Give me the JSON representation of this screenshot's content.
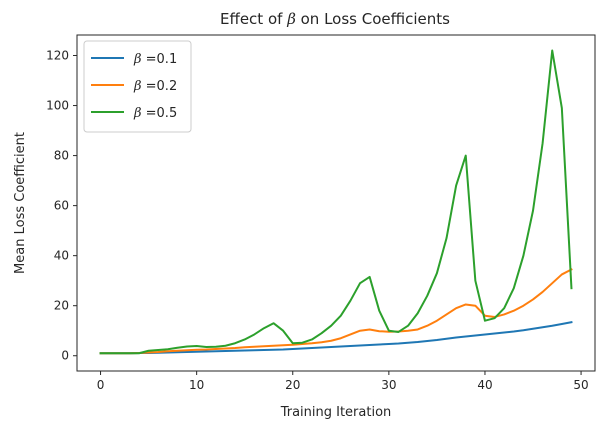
{
  "chart_data": {
    "type": "line",
    "title_prefix": "Effect of ",
    "title_symbol": "β",
    "title_suffix": " on Loss Coefficients",
    "xlabel": "Training Iteration",
    "ylabel": "Mean Loss Coefficient",
    "xlim": [
      -2.45,
      51.45
    ],
    "ylim": [
      -6.1,
      128.2
    ],
    "xticks": [
      0,
      10,
      20,
      30,
      40,
      50
    ],
    "yticks": [
      0,
      20,
      40,
      60,
      80,
      100,
      120
    ],
    "xtick_labels": [
      "0",
      "10",
      "20",
      "30",
      "40",
      "50"
    ],
    "ytick_labels": [
      "0",
      "20",
      "40",
      "60",
      "80",
      "100",
      "120"
    ],
    "grid": false,
    "legend_position": "upper-left",
    "x": [
      0,
      1,
      2,
      3,
      4,
      5,
      6,
      7,
      8,
      9,
      10,
      11,
      12,
      13,
      14,
      15,
      16,
      17,
      18,
      19,
      20,
      21,
      22,
      23,
      24,
      25,
      26,
      27,
      28,
      29,
      30,
      31,
      32,
      33,
      34,
      35,
      36,
      37,
      38,
      39,
      40,
      41,
      42,
      43,
      44,
      45,
      46,
      47,
      48,
      49
    ],
    "series": [
      {
        "name_symbol": "β",
        "name_value": " =0.1",
        "color": "#1f77b4",
        "values": [
          1.0,
          1.0,
          1.0,
          1.0,
          1.1,
          1.1,
          1.2,
          1.3,
          1.4,
          1.5,
          1.6,
          1.7,
          1.8,
          1.9,
          2.0,
          2.1,
          2.2,
          2.3,
          2.4,
          2.5,
          2.7,
          2.9,
          3.1,
          3.3,
          3.5,
          3.7,
          3.9,
          4.1,
          4.3,
          4.5,
          4.7,
          4.9,
          5.2,
          5.5,
          5.9,
          6.3,
          6.8,
          7.3,
          7.7,
          8.1,
          8.5,
          8.9,
          9.3,
          9.7,
          10.2,
          10.8,
          11.4,
          12.0,
          12.7,
          13.4
        ]
      },
      {
        "name_symbol": "β",
        "name_value": " =0.2",
        "color": "#ff7f0e",
        "values": [
          1.0,
          1.0,
          1.0,
          1.0,
          1.1,
          1.3,
          1.5,
          1.8,
          2.0,
          2.2,
          2.4,
          2.5,
          2.7,
          2.9,
          3.1,
          3.4,
          3.6,
          3.8,
          4.0,
          4.2,
          4.4,
          4.7,
          5.0,
          5.4,
          6.0,
          7.0,
          8.5,
          10.0,
          10.5,
          9.8,
          9.6,
          9.7,
          10.0,
          10.5,
          12.0,
          14.0,
          16.5,
          19.0,
          20.5,
          20.0,
          16.0,
          15.5,
          16.5,
          18.0,
          20.0,
          22.5,
          25.5,
          29.0,
          32.5,
          34.5
        ]
      },
      {
        "name_symbol": "β",
        "name_value": " =0.5",
        "color": "#2ca02c",
        "values": [
          1.0,
          1.0,
          1.0,
          1.0,
          1.0,
          2.0,
          2.3,
          2.6,
          3.2,
          3.7,
          3.9,
          3.5,
          3.6,
          4.0,
          5.0,
          6.5,
          8.5,
          11.0,
          13.0,
          10.0,
          5.0,
          5.2,
          6.5,
          9.0,
          12.0,
          16.0,
          22.0,
          29.0,
          31.5,
          18.0,
          10.0,
          9.5,
          12.0,
          17.0,
          24.0,
          33.0,
          47.0,
          68.0,
          80.0,
          30.0,
          14.0,
          15.0,
          19.0,
          27.0,
          40.0,
          58.0,
          85.0,
          122.0,
          99.0,
          27.0
        ]
      }
    ]
  }
}
